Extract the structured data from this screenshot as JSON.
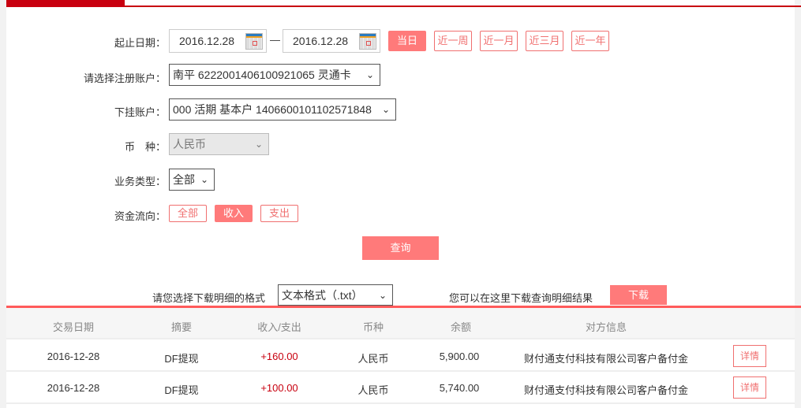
{
  "form": {
    "date_label": "起止日期：",
    "start_date": "2016.12.28",
    "end_date": "2016.12.28",
    "dash": "—",
    "quick_ranges": [
      "当日",
      "近一周",
      "近一月",
      "近三月",
      "近一年"
    ],
    "account_label": "请选择注册账户：",
    "account_value": "南平 6222001406100921065 灵通卡",
    "sub_account_label": "下挂账户：",
    "sub_account_value": "000 活期 基本户 1406600101102571848",
    "currency_label": "币　种：",
    "currency_value": "人民币",
    "biz_type_label": "业务类型：",
    "biz_type_value": "全部",
    "flow_label": "资金流向：",
    "flow_options": [
      "全部",
      "收入",
      "支出"
    ],
    "flow_selected": "收入",
    "query_label": "查询"
  },
  "download": {
    "format_label": "请您选择下载明细的格式",
    "format_value": "文本格式（.txt）",
    "hint": "您可以在这里下载查询明细结果",
    "button": "下载"
  },
  "table": {
    "headers": [
      "交易日期",
      "摘要",
      "收入/支出",
      "币种",
      "余额",
      "对方信息"
    ],
    "rows": [
      {
        "date": "2016-12-28",
        "summary": "DF提现",
        "amount": "+160.00",
        "currency": "人民币",
        "balance": "5,900.00",
        "counterparty": "财付通支付科技有限公司客户备付金",
        "action": "详情"
      },
      {
        "date": "2016-12-28",
        "summary": "DF提现",
        "amount": "+100.00",
        "currency": "人民币",
        "balance": "5,740.00",
        "counterparty": "财付通支付科技有限公司客户备付金",
        "action": "详情"
      }
    ]
  },
  "colors": {
    "brand": "#c8000f",
    "accent": "#ff7a7a",
    "income": "#c8000f"
  }
}
